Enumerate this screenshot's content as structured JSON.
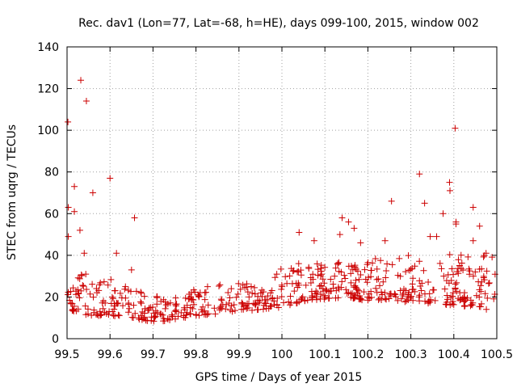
{
  "chart_data": {
    "type": "scatter",
    "title": "Rec. dav1 (Lon=77, Lat=-68, h=HE), days 099-100, 2015, window 002",
    "xlabel": "GPS time / Days of year 2015",
    "ylabel": "STEC from uqrg / TECUs",
    "xlim": [
      99.5,
      100.5
    ],
    "ylim": [
      0,
      140
    ],
    "xticks": [
      99.5,
      99.6,
      99.7,
      99.8,
      99.9,
      100,
      100.1,
      100.2,
      100.3,
      100.4,
      100.5
    ],
    "xtick_labels": [
      "99.5",
      "99.6",
      "99.7",
      "99.8",
      "99.9",
      "100",
      "100.1",
      "100.2",
      "100.3",
      "100.4",
      "100.5"
    ],
    "yticks": [
      0,
      20,
      40,
      60,
      80,
      100,
      120,
      140
    ],
    "ytick_labels": [
      "0",
      "20",
      "40",
      "60",
      "80",
      "100",
      "120",
      "140"
    ],
    "grid": true,
    "marker": "+",
    "color": "#cc0000",
    "outliers": [
      {
        "x": 99.502,
        "y": 104
      },
      {
        "x": 99.503,
        "y": 63
      },
      {
        "x": 99.503,
        "y": 49
      },
      {
        "x": 99.517,
        "y": 73
      },
      {
        "x": 99.517,
        "y": 61
      },
      {
        "x": 99.532,
        "y": 124
      },
      {
        "x": 99.53,
        "y": 52
      },
      {
        "x": 99.545,
        "y": 114
      },
      {
        "x": 99.54,
        "y": 41
      },
      {
        "x": 99.56,
        "y": 70
      },
      {
        "x": 99.6,
        "y": 77
      },
      {
        "x": 99.615,
        "y": 41
      },
      {
        "x": 99.65,
        "y": 33
      },
      {
        "x": 99.657,
        "y": 58
      },
      {
        "x": 100.04,
        "y": 51
      },
      {
        "x": 100.075,
        "y": 47
      },
      {
        "x": 100.135,
        "y": 50
      },
      {
        "x": 100.14,
        "y": 58
      },
      {
        "x": 100.155,
        "y": 56
      },
      {
        "x": 100.168,
        "y": 53
      },
      {
        "x": 100.183,
        "y": 46
      },
      {
        "x": 100.24,
        "y": 47
      },
      {
        "x": 100.255,
        "y": 66
      },
      {
        "x": 100.32,
        "y": 79
      },
      {
        "x": 100.332,
        "y": 65
      },
      {
        "x": 100.345,
        "y": 49
      },
      {
        "x": 100.36,
        "y": 49
      },
      {
        "x": 100.375,
        "y": 60
      },
      {
        "x": 100.39,
        "y": 75
      },
      {
        "x": 100.391,
        "y": 71
      },
      {
        "x": 100.403,
        "y": 101
      },
      {
        "x": 100.405,
        "y": 56
      },
      {
        "x": 100.405,
        "y": 55
      },
      {
        "x": 100.445,
        "y": 63
      },
      {
        "x": 100.445,
        "y": 47
      },
      {
        "x": 100.46,
        "y": 54
      },
      {
        "x": 100.475,
        "y": 41
      }
    ],
    "bulk_profile": {
      "x": [
        99.5,
        99.55,
        99.6,
        99.65,
        99.7,
        99.75,
        99.8,
        99.85,
        99.9,
        99.95,
        100.0,
        100.05,
        100.1,
        100.15,
        100.2,
        100.25,
        100.3,
        100.35,
        100.4,
        100.45,
        100.5
      ],
      "low": [
        14,
        11,
        11,
        10,
        8,
        9,
        11,
        12,
        13,
        14,
        15,
        18,
        19,
        20,
        18,
        19,
        17,
        17,
        16,
        15,
        13
      ],
      "high": [
        40,
        30,
        29,
        28,
        21,
        20,
        25,
        26,
        28,
        27,
        34,
        38,
        36,
        37,
        38,
        40,
        40,
        38,
        41,
        43,
        40
      ]
    }
  }
}
